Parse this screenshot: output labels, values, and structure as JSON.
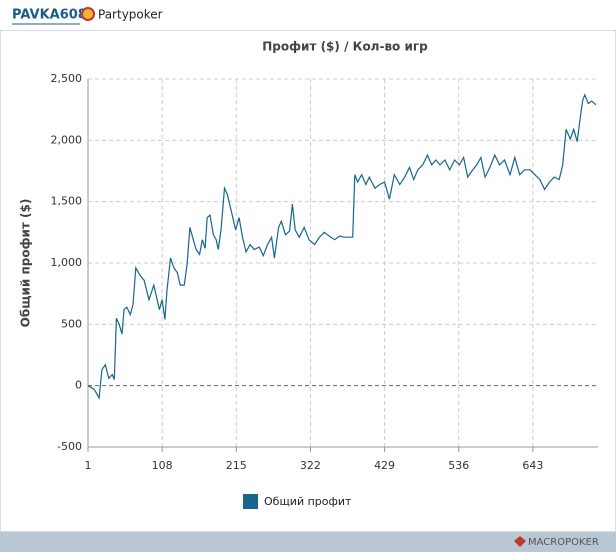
{
  "header": {
    "user": "PAVKA608",
    "site": "Partypoker"
  },
  "footer": {
    "brand": "MACROPOKER"
  },
  "chart_data": {
    "type": "line",
    "title": "Профит ($) / Кол-во игр",
    "ylabel": "Общий профит ($)",
    "x": [
      1,
      10,
      17,
      21,
      26,
      31,
      36,
      39,
      42,
      46,
      50,
      53,
      57,
      62,
      66,
      70,
      76,
      82,
      89,
      96,
      104,
      108,
      112,
      115,
      120,
      125,
      130,
      134,
      140,
      144,
      148,
      153,
      157,
      162,
      166,
      170,
      173,
      177,
      182,
      186,
      189,
      193,
      198,
      202,
      208,
      214,
      219,
      224,
      229,
      235,
      241,
      248,
      254,
      260,
      266,
      270,
      276,
      280,
      286,
      292,
      296,
      300,
      306,
      313,
      320,
      328,
      335,
      342,
      349,
      357,
      364,
      371,
      378,
      383,
      386,
      390,
      396,
      402,
      407,
      415,
      422,
      429,
      436,
      443,
      451,
      458,
      465,
      471,
      477,
      484,
      491,
      497,
      503,
      509,
      516,
      523,
      530,
      537,
      543,
      549,
      555,
      562,
      568,
      574,
      581,
      588,
      595,
      602,
      610,
      617,
      624,
      631,
      639,
      646,
      653,
      660,
      667,
      674,
      681,
      686,
      691,
      697,
      702,
      707,
      711,
      715,
      718,
      723,
      728,
      734
    ],
    "series": [
      {
        "name": "Общий профит",
        "color": "#17668f",
        "values": [
          0,
          -30,
          -100,
          130,
          170,
          60,
          90,
          50,
          550,
          500,
          420,
          620,
          640,
          580,
          660,
          960,
          900,
          860,
          700,
          820,
          620,
          700,
          540,
          780,
          1040,
          960,
          920,
          820,
          820,
          990,
          1290,
          1190,
          1110,
          1070,
          1190,
          1120,
          1370,
          1390,
          1230,
          1190,
          1110,
          1270,
          1610,
          1560,
          1420,
          1270,
          1370,
          1210,
          1090,
          1150,
          1110,
          1130,
          1060,
          1150,
          1210,
          1040,
          1290,
          1340,
          1230,
          1260,
          1480,
          1270,
          1210,
          1290,
          1190,
          1150,
          1210,
          1250,
          1220,
          1190,
          1220,
          1210,
          1210,
          1210,
          1720,
          1660,
          1720,
          1640,
          1700,
          1610,
          1640,
          1660,
          1520,
          1720,
          1640,
          1700,
          1780,
          1680,
          1760,
          1800,
          1880,
          1800,
          1840,
          1800,
          1840,
          1760,
          1840,
          1800,
          1860,
          1700,
          1750,
          1800,
          1860,
          1700,
          1780,
          1880,
          1800,
          1840,
          1720,
          1860,
          1720,
          1760,
          1760,
          1720,
          1680,
          1600,
          1660,
          1700,
          1680,
          1800,
          2090,
          2010,
          2090,
          1990,
          2170,
          2330,
          2370,
          2300,
          2320,
          2290
        ]
      }
    ],
    "xlim": [
      1,
      737
    ],
    "xticks": [
      1,
      108,
      215,
      322,
      429,
      536,
      643
    ],
    "ylim": [
      -500,
      2500
    ],
    "yticks": [
      -500,
      0,
      500,
      {
        "value": 1000,
        "label": "1,000"
      },
      {
        "value": 1500,
        "label": "1,500"
      },
      {
        "value": 2000,
        "label": "2,000"
      },
      {
        "value": 2500,
        "label": "2,500"
      }
    ],
    "grid": true
  }
}
